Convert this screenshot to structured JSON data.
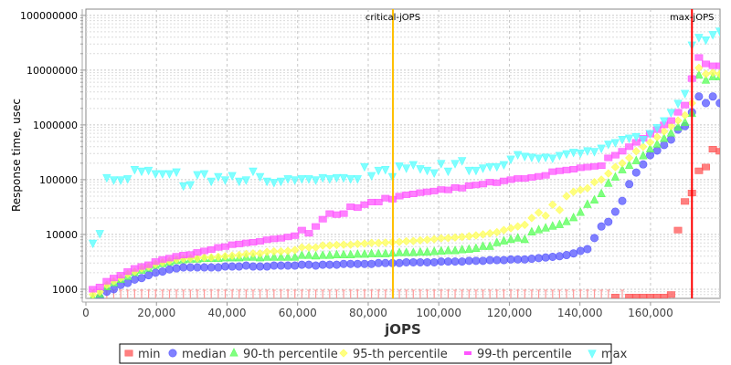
{
  "chart_data": {
    "type": "scatter",
    "title": "",
    "xlabel": "jOPS",
    "ylabel": "Response time, usec",
    "xlim": [
      0,
      179700
    ],
    "ylim": [
      680,
      130000000
    ],
    "y_scale": "log",
    "grid": true,
    "legend_placement": "bottom",
    "x_ticks": [
      "0",
      "20,000",
      "40,000",
      "60,000",
      "80,000",
      "100,000",
      "120,000",
      "140,000",
      "160,000"
    ],
    "x_tick_values": [
      0,
      20000,
      40000,
      60000,
      80000,
      100000,
      120000,
      140000,
      160000
    ],
    "y_ticks": [
      "1000",
      "10000",
      "100000",
      "1000000",
      "10000000",
      "100000000"
    ],
    "y_tick_values": [
      1000,
      10000,
      100000,
      1000000,
      10000000,
      100000000
    ],
    "markers": [
      {
        "label": "critical-jOPS",
        "x": 87000,
        "color": "#ffc000"
      },
      {
        "label": "max-jOPS",
        "x": 171738,
        "color": "#ff0000"
      }
    ],
    "x": [
      1974,
      3948,
      5922,
      7896,
      9870,
      11844,
      13818,
      15792,
      17766,
      19740,
      21714,
      23688,
      25662,
      27636,
      29610,
      31584,
      33558,
      35532,
      37506,
      39480,
      41454,
      43428,
      45402,
      47376,
      49350,
      51324,
      53298,
      55272,
      57246,
      59220,
      61194,
      63168,
      65142,
      67116,
      69090,
      71064,
      73038,
      75012,
      76986,
      78960,
      80934,
      82908,
      84882,
      86856,
      88830,
      90804,
      92778,
      94752,
      96726,
      98700,
      100674,
      102648,
      104622,
      106596,
      108570,
      110544,
      112518,
      114492,
      116466,
      118440,
      120414,
      122388,
      124362,
      126336,
      128310,
      130284,
      132258,
      134232,
      136206,
      138180,
      140154,
      142128,
      144102,
      146076,
      148050,
      150024,
      151998,
      153972,
      155946,
      157920,
      159894,
      161868,
      163842,
      165816,
      167790,
      169764,
      171738,
      173712,
      175686,
      177660,
      179634
    ],
    "series": [
      {
        "name": "min",
        "color": "#ff5555",
        "marker": "square",
        "values": [
          500,
          500,
          500,
          500,
          500,
          500,
          500,
          500,
          500,
          500,
          500,
          500,
          500,
          500,
          500,
          500,
          500,
          500,
          500,
          500,
          500,
          500,
          500,
          500,
          500,
          500,
          500,
          500,
          500,
          500,
          500,
          500,
          500,
          500,
          500,
          500,
          500,
          500,
          500,
          500,
          500,
          500,
          500,
          500,
          500,
          500,
          500,
          500,
          500,
          500,
          500,
          500,
          500,
          500,
          500,
          500,
          500,
          500,
          500,
          500,
          500,
          500,
          500,
          500,
          500,
          500,
          500,
          500,
          500,
          500,
          500,
          500,
          500,
          500,
          500,
          720,
          500,
          720,
          720,
          720,
          720,
          720,
          720,
          800,
          12000,
          40000,
          57000,
          145000,
          170000,
          360000,
          330000
        ]
      },
      {
        "name": "median",
        "color": "#5555ff",
        "marker": "circle",
        "values": [
          600,
          700,
          900,
          1000,
          1200,
          1300,
          1500,
          1600,
          1800,
          2000,
          2100,
          2300,
          2400,
          2500,
          2500,
          2500,
          2500,
          2500,
          2500,
          2600,
          2600,
          2600,
          2700,
          2600,
          2600,
          2600,
          2700,
          2700,
          2700,
          2700,
          2800,
          2800,
          2700,
          2800,
          2800,
          2800,
          2900,
          2900,
          2900,
          2900,
          2900,
          3000,
          3000,
          3000,
          3000,
          3100,
          3100,
          3100,
          3100,
          3100,
          3200,
          3200,
          3200,
          3200,
          3300,
          3300,
          3300,
          3400,
          3400,
          3400,
          3500,
          3500,
          3500,
          3600,
          3700,
          3800,
          3900,
          4000,
          4200,
          4500,
          5000,
          5400,
          8600,
          14000,
          17000,
          26000,
          41000,
          83000,
          135000,
          190000,
          280000,
          340000,
          430000,
          540000,
          820000,
          950000,
          1700000,
          3300000,
          2500000,
          3300000,
          2500000
        ]
      },
      {
        "name": "90-th percentile",
        "color": "#55ff55",
        "marker": "triangle-up",
        "values": [
          700,
          800,
          1100,
          1300,
          1500,
          1700,
          2000,
          2200,
          2400,
          2700,
          2900,
          3100,
          3300,
          3400,
          3500,
          3500,
          3600,
          3600,
          3600,
          3700,
          3700,
          3700,
          3800,
          3800,
          3700,
          3800,
          3800,
          3800,
          3800,
          3800,
          4100,
          4100,
          4000,
          4100,
          4100,
          4200,
          4200,
          4200,
          4300,
          4300,
          4400,
          4400,
          4400,
          4500,
          4600,
          4600,
          4600,
          4700,
          4700,
          4800,
          4900,
          5000,
          5000,
          5200,
          5300,
          5500,
          6000,
          6000,
          7000,
          7500,
          8000,
          8500,
          8000,
          11000,
          12000,
          13000,
          14000,
          15000,
          17000,
          20000,
          25000,
          35000,
          42000,
          55000,
          85000,
          110000,
          150000,
          180000,
          220000,
          270000,
          360000,
          440000,
          560000,
          700000,
          900000,
          1100000,
          1600000,
          8000000,
          6500000,
          7500000,
          7500000
        ]
      },
      {
        "name": "95-th percentile",
        "color": "#ffff55",
        "marker": "diamond",
        "values": [
          800,
          900,
          1200,
          1400,
          1600,
          1900,
          2100,
          2400,
          2600,
          2900,
          3100,
          3300,
          3500,
          3600,
          3700,
          3700,
          3800,
          3800,
          3900,
          4000,
          4100,
          4200,
          4400,
          4500,
          4500,
          4800,
          4900,
          4900,
          5000,
          5200,
          5800,
          5800,
          5800,
          6300,
          6300,
          6400,
          6500,
          6500,
          6700,
          6800,
          7000,
          7000,
          7100,
          7200,
          7300,
          7500,
          7600,
          7800,
          8000,
          8200,
          8500,
          8600,
          8800,
          9000,
          9300,
          9600,
          10000,
          10500,
          11000,
          12000,
          13000,
          14000,
          15000,
          20000,
          25000,
          22000,
          35000,
          28000,
          50000,
          60000,
          65000,
          70000,
          90000,
          100000,
          130000,
          170000,
          200000,
          250000,
          330000,
          400000,
          480000,
          600000,
          760000,
          950000,
          1200000,
          1500000,
          2500000,
          11000000,
          8500000,
          9000000,
          8500000
        ]
      },
      {
        "name": "99-th percentile",
        "color": "#ff55ff",
        "marker": "square",
        "values": [
          1000,
          1100,
          1400,
          1600,
          1800,
          2100,
          2400,
          2600,
          2800,
          3200,
          3500,
          3700,
          4000,
          4200,
          4300,
          4700,
          5000,
          5300,
          5800,
          6000,
          6500,
          6700,
          7000,
          7200,
          7500,
          8000,
          8300,
          8500,
          9000,
          9500,
          12000,
          10500,
          14000,
          19000,
          24000,
          23000,
          24000,
          32000,
          31000,
          35000,
          39000,
          39000,
          46000,
          44000,
          50000,
          53000,
          55000,
          58000,
          60000,
          62000,
          66000,
          65000,
          72000,
          70000,
          78000,
          80000,
          83000,
          90000,
          88000,
          95000,
          100000,
          105000,
          105000,
          110000,
          115000,
          120000,
          140000,
          145000,
          150000,
          155000,
          165000,
          170000,
          175000,
          180000,
          250000,
          280000,
          330000,
          400000,
          480000,
          570000,
          680000,
          820000,
          1000000,
          1200000,
          1700000,
          2300000,
          7000000,
          17000000,
          13000000,
          12000000,
          12000000
        ]
      },
      {
        "name": "max",
        "color": "#55ffff",
        "marker": "triangle-down",
        "values": [
          7000,
          10500,
          110000,
          100000,
          100000,
          105000,
          155000,
          145000,
          150000,
          130000,
          130000,
          130000,
          140000,
          78000,
          82000,
          125000,
          130000,
          95000,
          115000,
          100000,
          120000,
          95000,
          100000,
          145000,
          115000,
          95000,
          90000,
          95000,
          105000,
          100000,
          105000,
          105000,
          100000,
          110000,
          105000,
          110000,
          110000,
          105000,
          105000,
          175000,
          120000,
          150000,
          155000,
          115000,
          180000,
          165000,
          190000,
          160000,
          150000,
          135000,
          200000,
          145000,
          200000,
          225000,
          150000,
          150000,
          165000,
          175000,
          175000,
          190000,
          240000,
          290000,
          270000,
          260000,
          250000,
          260000,
          250000,
          280000,
          300000,
          320000,
          310000,
          340000,
          330000,
          380000,
          450000,
          480000,
          550000,
          580000,
          620000,
          550000,
          700000,
          900000,
          1200000,
          1700000,
          2500000,
          3800000,
          29000000,
          40000000,
          36000000,
          45000000,
          52000000
        ]
      }
    ]
  }
}
